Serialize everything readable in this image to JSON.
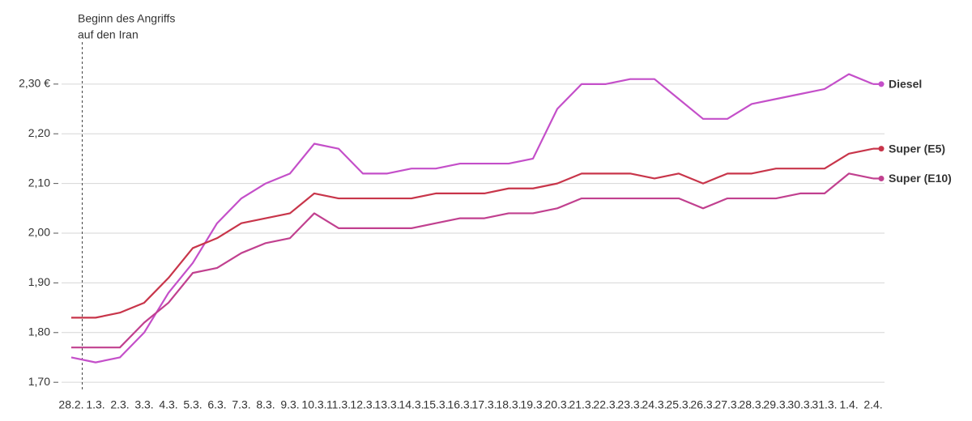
{
  "chart_data": {
    "type": "line",
    "annotation": {
      "text": [
        "Beginn des Angriffs",
        "auf den Iran"
      ],
      "x": "28.2."
    },
    "categories": [
      "28.2.",
      "1.3.",
      "2.3.",
      "3.3.",
      "4.3.",
      "5.3.",
      "6.3.",
      "7.3.",
      "8.3.",
      "9.3.",
      "10.3.",
      "11.3.",
      "12.3.",
      "13.3.",
      "14.3.",
      "15.3.",
      "16.3.",
      "17.3.",
      "18.3.",
      "19.3.",
      "20.3.",
      "21.3.",
      "22.3.",
      "23.3.",
      "24.3.",
      "25.3.",
      "26.3.",
      "27.3.",
      "28.3.",
      "29.3.",
      "30.3.",
      "31.3.",
      "1.4.",
      "2.4."
    ],
    "series": [
      {
        "name": "Diesel",
        "color": "#c44fc9",
        "values": [
          1.75,
          1.74,
          1.75,
          1.8,
          1.88,
          1.94,
          2.02,
          2.07,
          2.1,
          2.12,
          2.18,
          2.17,
          2.12,
          2.12,
          2.13,
          2.13,
          2.14,
          2.14,
          2.14,
          2.15,
          2.25,
          2.3,
          2.3,
          2.31,
          2.31,
          2.27,
          2.23,
          2.23,
          2.26,
          2.27,
          2.28,
          2.29,
          2.32,
          2.3
        ]
      },
      {
        "name": "Super (E5)",
        "color": "#c8354a",
        "values": [
          1.83,
          1.83,
          1.84,
          1.86,
          1.91,
          1.97,
          1.99,
          2.02,
          2.03,
          2.04,
          2.08,
          2.07,
          2.07,
          2.07,
          2.07,
          2.08,
          2.08,
          2.08,
          2.09,
          2.09,
          2.1,
          2.12,
          2.12,
          2.12,
          2.11,
          2.12,
          2.1,
          2.12,
          2.12,
          2.13,
          2.13,
          2.13,
          2.16,
          2.17
        ]
      },
      {
        "name": "Super (E10)",
        "color": "#c1408f",
        "values": [
          1.77,
          1.77,
          1.77,
          1.82,
          1.86,
          1.92,
          1.93,
          1.96,
          1.98,
          1.99,
          2.04,
          2.01,
          2.01,
          2.01,
          2.01,
          2.02,
          2.03,
          2.03,
          2.04,
          2.04,
          2.05,
          2.07,
          2.07,
          2.07,
          2.07,
          2.07,
          2.05,
          2.07,
          2.07,
          2.07,
          2.08,
          2.08,
          2.12,
          2.11
        ]
      }
    ],
    "ylim": [
      1.684,
      2.404
    ],
    "yticks": [
      {
        "value": 1.7,
        "label": "1,70"
      },
      {
        "value": 1.8,
        "label": "1,80"
      },
      {
        "value": 1.9,
        "label": "1,90"
      },
      {
        "value": 2.0,
        "label": "2,00"
      },
      {
        "value": 2.1,
        "label": "2,10"
      },
      {
        "value": 2.2,
        "label": "2,20"
      },
      {
        "value": 2.3,
        "label": "2,30 €"
      }
    ],
    "grid": true
  }
}
